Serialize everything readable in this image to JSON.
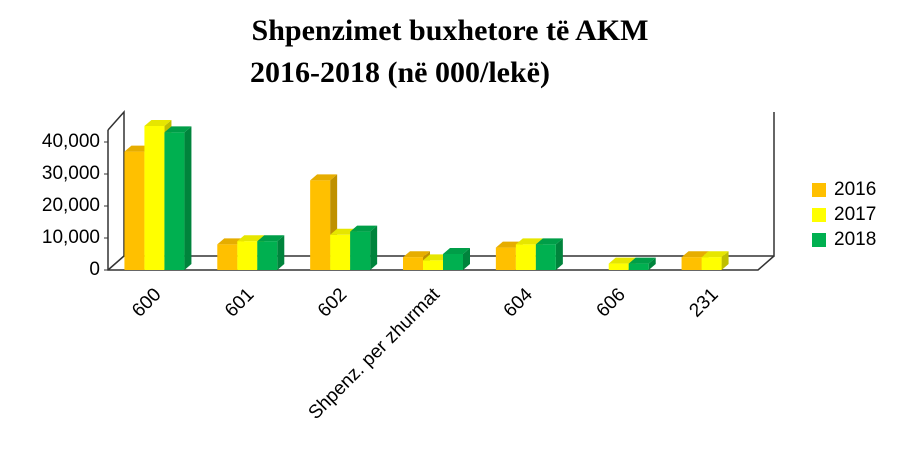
{
  "chart_data": {
    "type": "bar",
    "title": [
      "Shpenzimet buxhetore të AKM",
      "2016-2018 (në 000/lekë)"
    ],
    "categories": [
      "600",
      "601",
      "602",
      "Shpenz. per zhurmat",
      "604",
      "606",
      "231"
    ],
    "series": [
      {
        "name": "2016",
        "color": "#ffc000",
        "values": [
          37000,
          8000,
          28000,
          4000,
          7000,
          null,
          4000
        ]
      },
      {
        "name": "2017",
        "color": "#ffff00",
        "values": [
          45000,
          9000,
          11000,
          3000,
          8000,
          2000,
          4000
        ]
      },
      {
        "name": "2018",
        "color": "#00b050",
        "values": [
          43000,
          9000,
          12000,
          5000,
          8000,
          2000,
          null
        ]
      }
    ],
    "ylim": [
      0,
      50000
    ],
    "yticks": [
      0,
      {
        "value": 10000,
        "label": "10,000"
      },
      {
        "value": 20000,
        "label": "20,000"
      },
      {
        "value": 30000,
        "label": "30,000"
      },
      {
        "value": 40000,
        "label": "40,000"
      }
    ],
    "legend": "right"
  }
}
